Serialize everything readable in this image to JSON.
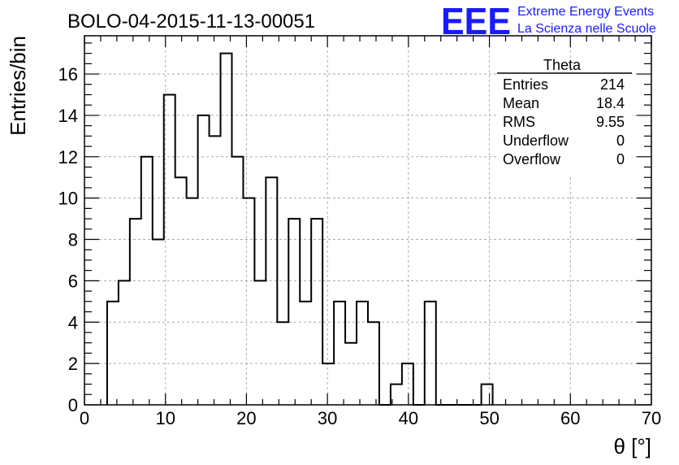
{
  "chart_data": {
    "type": "bar",
    "title": "BOLO-04-2015-11-13-00051",
    "xlabel": "θ [°]",
    "ylabel": "Entries/bin",
    "xlim": [
      0,
      70
    ],
    "ylim": [
      0,
      17.85
    ],
    "x_ticks": [
      0,
      10,
      20,
      30,
      40,
      50,
      60,
      70
    ],
    "y_ticks": [
      0,
      2,
      4,
      6,
      8,
      10,
      12,
      14,
      16
    ],
    "grid": true,
    "bin_width": 1.4,
    "bin_start": 2.8,
    "values": [
      5,
      6,
      9,
      12,
      8,
      15,
      11,
      10,
      14,
      13,
      17,
      12,
      10,
      6,
      11,
      4,
      9,
      5,
      9,
      2,
      5,
      3,
      5,
      4,
      0,
      1,
      2,
      0,
      5,
      0,
      0,
      0,
      0,
      1
    ],
    "stats": {
      "name": "Theta",
      "rows": [
        {
          "label": "Entries",
          "value": "214"
        },
        {
          "label": "Mean",
          "value": "18.4"
        },
        {
          "label": "RMS",
          "value": "9.55"
        },
        {
          "label": "Underflow",
          "value": "0"
        },
        {
          "label": "Overflow",
          "value": "0"
        }
      ]
    }
  },
  "logo": {
    "mark": "EEE",
    "line1": "Extreme Energy Events",
    "line2": "La Scienza nelle Scuole",
    "color": "#1a1aff"
  }
}
